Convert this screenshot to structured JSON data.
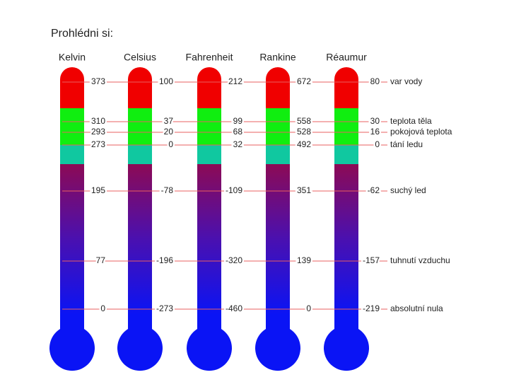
{
  "title": "Prohlédni si:",
  "scales": [
    {
      "name": "Kelvin",
      "values": [
        373,
        310,
        293,
        273,
        195,
        77,
        0
      ]
    },
    {
      "name": "Celsius",
      "values": [
        100,
        37,
        20,
        0,
        -78,
        -196,
        -273
      ]
    },
    {
      "name": "Fahrenheit",
      "values": [
        212,
        99,
        68,
        32,
        -109,
        -320,
        -460
      ]
    },
    {
      "name": "Rankine",
      "values": [
        672,
        558,
        528,
        492,
        351,
        139,
        0
      ]
    },
    {
      "name": "Réaumur",
      "values": [
        80,
        30,
        16,
        0,
        -62,
        -157,
        -219
      ]
    }
  ],
  "points": [
    "var vody",
    "teplota těla",
    "pokojová teplota",
    "tání ledu",
    "suchý led",
    "tuhnutí vzduchu",
    "absolutní nula"
  ]
}
